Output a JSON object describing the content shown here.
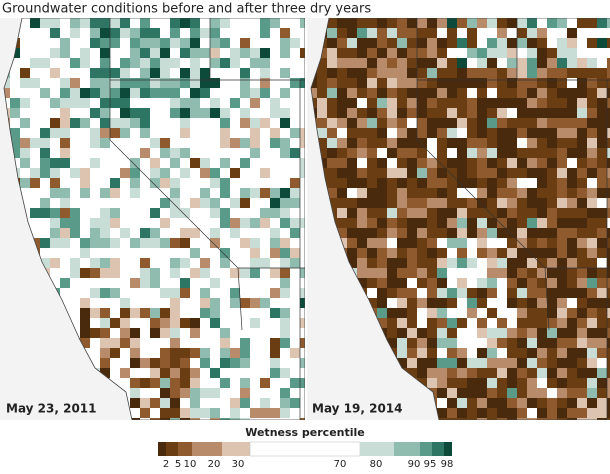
{
  "header": {
    "title": "Groundwater conditions before and after three dry years"
  },
  "panels": [
    {
      "date": "May 23, 2011"
    },
    {
      "date": "May 19, 2014"
    }
  ],
  "legend": {
    "title": "Wetness percentile",
    "ticks": [
      2,
      5,
      10,
      20,
      30,
      70,
      80,
      90,
      95,
      98
    ],
    "colors": [
      "#4a2a0c",
      "#6b3d12",
      "#8e5a2e",
      "#b88c6a",
      "#dcc4b0",
      "#ffffff",
      "#c8ddd6",
      "#8fbcae",
      "#5a9a88",
      "#2e7563",
      "#0e4a3a"
    ]
  }
}
